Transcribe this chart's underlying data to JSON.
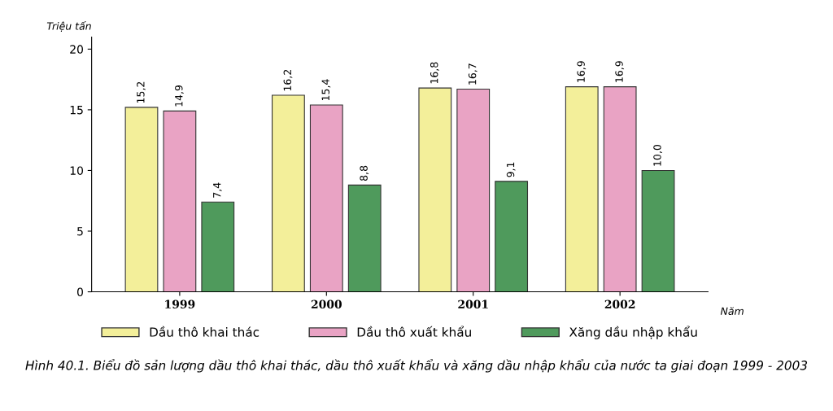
{
  "chart_data": {
    "type": "bar",
    "ylabel": "Triệu tấn",
    "xlabel": "Năm",
    "categories": [
      "1999",
      "2000",
      "2001",
      "2002"
    ],
    "series": [
      {
        "name": "Dầu thô khai thác",
        "color": "#f3ef9a",
        "values": [
          15.2,
          16.2,
          16.8,
          16.9
        ],
        "value_labels": [
          "15,2",
          "16,2",
          "16,8",
          "16,9"
        ]
      },
      {
        "name": "Dầu thô xuất khẩu",
        "color": "#e9a3c4",
        "values": [
          14.9,
          15.4,
          16.7,
          16.9
        ],
        "value_labels": [
          "14,9",
          "15,4",
          "16,7",
          "16,9"
        ]
      },
      {
        "name": "Xăng dầu nhập khẩu",
        "color": "#4f9a5c",
        "values": [
          7.4,
          8.8,
          9.1,
          10.0
        ],
        "value_labels": [
          "7,4",
          "8,8",
          "9,1",
          "10,0"
        ]
      }
    ],
    "ylim": [
      0,
      21
    ],
    "yticks": [
      0,
      5,
      10,
      15,
      20
    ],
    "grid": false,
    "legend": "bottom",
    "annotations": [
      "Hình 40.1. Biểu đồ sản lượng dầu thô khai thác, dầu thô xuất khẩu và xăng dầu nhập khẩu của nước ta giai đoạn 1999 - 2003"
    ]
  }
}
